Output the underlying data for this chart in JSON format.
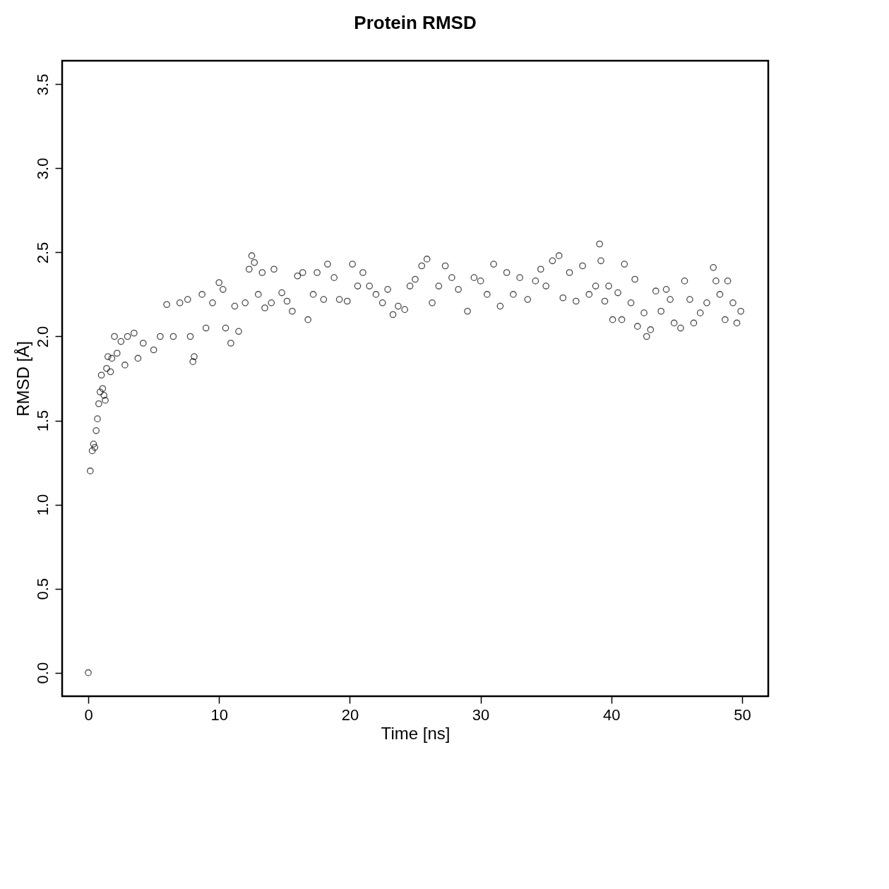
{
  "chart_data": {
    "type": "scatter",
    "title": "Protein RMSD",
    "xlabel": "Time [ns]",
    "ylabel": "RMSD [Å]",
    "marker": "circle",
    "grid": false,
    "xlim": [
      -2,
      52
    ],
    "xticks": [
      0,
      10,
      20,
      30,
      40,
      50
    ],
    "ylim": [
      -0.14,
      3.64
    ],
    "yticks": [
      {
        "value": 0,
        "label": "0.0"
      },
      {
        "value": 0.5,
        "label": "0.5"
      },
      {
        "value": 1,
        "label": "1.0"
      },
      {
        "value": 1.5,
        "label": "1.5"
      },
      {
        "value": 2,
        "label": "2.0"
      },
      {
        "value": 2.5,
        "label": "2.5"
      },
      {
        "value": 3,
        "label": "3.0"
      },
      {
        "value": 3.5,
        "label": "3.5"
      }
    ],
    "series": [
      {
        "color": "#000000",
        "x": [
          0,
          0.15,
          0.3,
          0.4,
          0.5,
          0.6,
          0.7,
          0.8,
          0.9,
          1.0,
          1.1,
          1.2,
          1.3,
          1.4,
          1.5,
          1.7,
          1.8,
          2.0,
          2.2,
          2.5,
          2.8,
          3.0,
          3.5,
          3.8,
          4.2,
          5,
          5.5,
          6,
          6.5,
          7,
          7.6,
          7.8,
          8.0,
          8.1,
          8.7,
          9,
          9.5,
          10,
          10.3,
          10.5,
          10.9,
          11.2,
          11.5,
          12,
          12.3,
          12.5,
          12.7,
          13,
          13.3,
          13.5,
          14,
          14.2,
          14.8,
          15.2,
          15.6,
          16,
          16.4,
          16.8,
          17.2,
          17.5,
          18,
          18.3,
          18.8,
          19.2,
          19.8,
          20.2,
          20.6,
          21,
          21.5,
          22,
          22.5,
          22.9,
          23.3,
          23.7,
          24.2,
          24.6,
          25,
          25.5,
          25.9,
          26.3,
          26.8,
          27.3,
          27.8,
          28.3,
          29,
          29.5,
          30,
          30.5,
          31,
          31.5,
          32,
          32.5,
          33,
          33.6,
          34.2,
          34.6,
          35,
          35.5,
          36,
          36.3,
          36.8,
          37.3,
          37.8,
          38.3,
          38.8,
          39.1,
          39.2,
          39.5,
          39.8,
          40.1,
          40.5,
          40.8,
          41,
          41.5,
          41.8,
          42,
          42.5,
          42.7,
          43,
          43.4,
          43.8,
          44.2,
          44.5,
          44.8,
          45.3,
          45.6,
          46,
          46.3,
          46.8,
          47.3,
          47.8,
          48,
          48.3,
          48.7,
          48.9,
          49.3,
          49.6,
          49.9
        ],
        "values": [
          0,
          1.2,
          1.32,
          1.36,
          1.34,
          1.44,
          1.51,
          1.6,
          1.67,
          1.77,
          1.69,
          1.65,
          1.62,
          1.81,
          1.88,
          1.79,
          1.87,
          2.0,
          1.9,
          1.97,
          1.83,
          2.0,
          2.02,
          1.87,
          1.96,
          1.92,
          2.0,
          2.19,
          2.0,
          2.2,
          2.22,
          2.0,
          1.85,
          1.88,
          2.25,
          2.05,
          2.2,
          2.32,
          2.28,
          2.05,
          1.96,
          2.18,
          2.03,
          2.2,
          2.4,
          2.48,
          2.44,
          2.25,
          2.38,
          2.17,
          2.2,
          2.4,
          2.26,
          2.21,
          2.15,
          2.36,
          2.38,
          2.1,
          2.25,
          2.38,
          2.22,
          2.43,
          2.35,
          2.22,
          2.21,
          2.43,
          2.3,
          2.38,
          2.3,
          2.25,
          2.2,
          2.28,
          2.13,
          2.18,
          2.16,
          2.3,
          2.34,
          2.42,
          2.46,
          2.2,
          2.3,
          2.42,
          2.35,
          2.28,
          2.15,
          2.35,
          2.33,
          2.25,
          2.43,
          2.18,
          2.38,
          2.25,
          2.35,
          2.22,
          2.33,
          2.4,
          2.3,
          2.45,
          2.48,
          2.23,
          2.38,
          2.21,
          2.42,
          2.25,
          2.3,
          2.55,
          2.45,
          2.21,
          2.3,
          2.1,
          2.26,
          2.1,
          2.43,
          2.2,
          2.34,
          2.06,
          2.14,
          2.0,
          2.04,
          2.27,
          2.15,
          2.28,
          2.22,
          2.08,
          2.05,
          2.33,
          2.22,
          2.08,
          2.14,
          2.2,
          2.41,
          2.33,
          2.25,
          2.1,
          2.33,
          2.2,
          2.08,
          2.15
        ]
      }
    ]
  }
}
